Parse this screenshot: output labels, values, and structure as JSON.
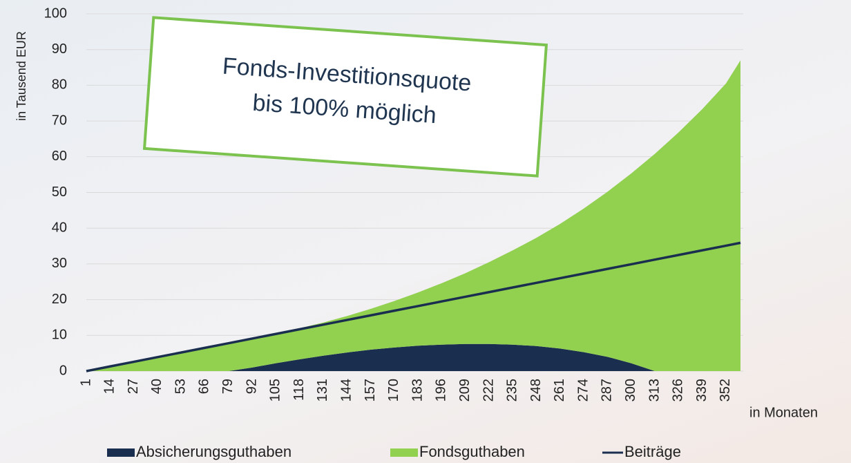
{
  "chart_data": {
    "type": "stacked-area",
    "y_label": "in Tausend EUR",
    "x_label": "in Monaten",
    "annotation": [
      "Fonds-Investitionsquote",
      "bis 100% möglich"
    ],
    "x": [
      1,
      14,
      27,
      40,
      53,
      66,
      79,
      92,
      105,
      118,
      131,
      144,
      157,
      170,
      183,
      196,
      209,
      222,
      235,
      248,
      261,
      274,
      287,
      300,
      313,
      326,
      339,
      352,
      360
    ],
    "xlim": [
      1,
      360
    ],
    "xticks": [
      1,
      14,
      27,
      40,
      53,
      66,
      79,
      92,
      105,
      118,
      131,
      144,
      157,
      170,
      183,
      196,
      209,
      222,
      235,
      248,
      261,
      274,
      287,
      300,
      313,
      326,
      339,
      352
    ],
    "ylim": [
      0,
      100
    ],
    "yticks": [
      0,
      10,
      20,
      30,
      40,
      50,
      60,
      70,
      80,
      90,
      100
    ],
    "grid": true,
    "legend": "bottom",
    "series": [
      {
        "name": "Absicherungsguthaben",
        "color": "#1a2e4f",
        "kind": "area",
        "values": [
          0,
          0,
          0,
          0,
          0,
          0,
          0,
          1,
          2.2,
          3.3,
          4.3,
          5.2,
          6,
          6.6,
          7.1,
          7.4,
          7.6,
          7.6,
          7.4,
          7,
          6.3,
          5.3,
          4,
          2.2,
          0,
          0,
          0,
          0,
          0
        ]
      },
      {
        "name": "Fondsguthaben",
        "color": "#92d050",
        "kind": "area",
        "values": [
          0,
          1.2,
          2.5,
          3.8,
          5.0,
          6.3,
          7.6,
          8.0,
          8.3,
          8.7,
          9.3,
          10.2,
          11.4,
          13.0,
          14.9,
          17.2,
          19.8,
          22.9,
          26.4,
          30.3,
          34.9,
          40.2,
          46.2,
          53.1,
          60.8,
          66.8,
          73.3,
          80.5,
          87
        ]
      },
      {
        "name": "Beiträge",
        "color": "#1a2e4f",
        "kind": "line",
        "values": [
          0,
          1.3,
          2.6,
          3.9,
          5.2,
          6.5,
          7.8,
          9.1,
          10.4,
          11.7,
          13,
          14.3,
          15.6,
          16.9,
          18.2,
          19.5,
          20.8,
          22.1,
          23.4,
          24.7,
          26,
          27.3,
          28.6,
          29.9,
          31.2,
          32.5,
          33.8,
          35.1,
          35.9
        ]
      }
    ]
  }
}
